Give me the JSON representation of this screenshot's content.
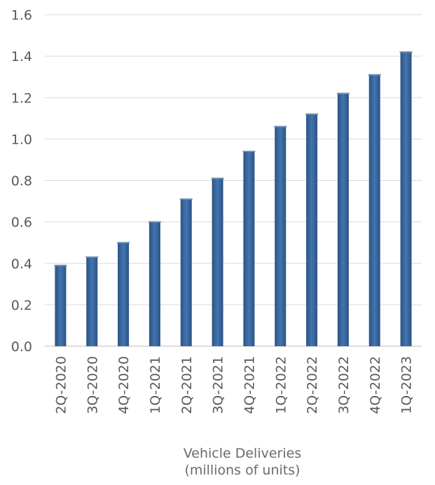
{
  "chart_data": {
    "type": "bar",
    "categories": [
      "2Q-2020",
      "3Q-2020",
      "4Q-2020",
      "1Q-2021",
      "2Q-2021",
      "3Q-2021",
      "4Q-2021",
      "1Q-2022",
      "2Q-2022",
      "3Q-2022",
      "4Q-2022",
      "1Q-2023"
    ],
    "values": [
      0.39,
      0.43,
      0.5,
      0.6,
      0.71,
      0.81,
      0.94,
      1.06,
      1.12,
      1.22,
      1.31,
      1.42
    ],
    "ylim": [
      0,
      1.6
    ],
    "yticks": [
      "0.0",
      "0.2",
      "0.4",
      "0.6",
      "0.8",
      "1.0",
      "1.2",
      "1.4",
      "1.6"
    ],
    "xlabel_lines": [
      "Vehicle Deliveries",
      "(millions of units)"
    ],
    "grid": true,
    "bar_color": "#3a6ea5",
    "grid_color": "#d9d9d9"
  }
}
